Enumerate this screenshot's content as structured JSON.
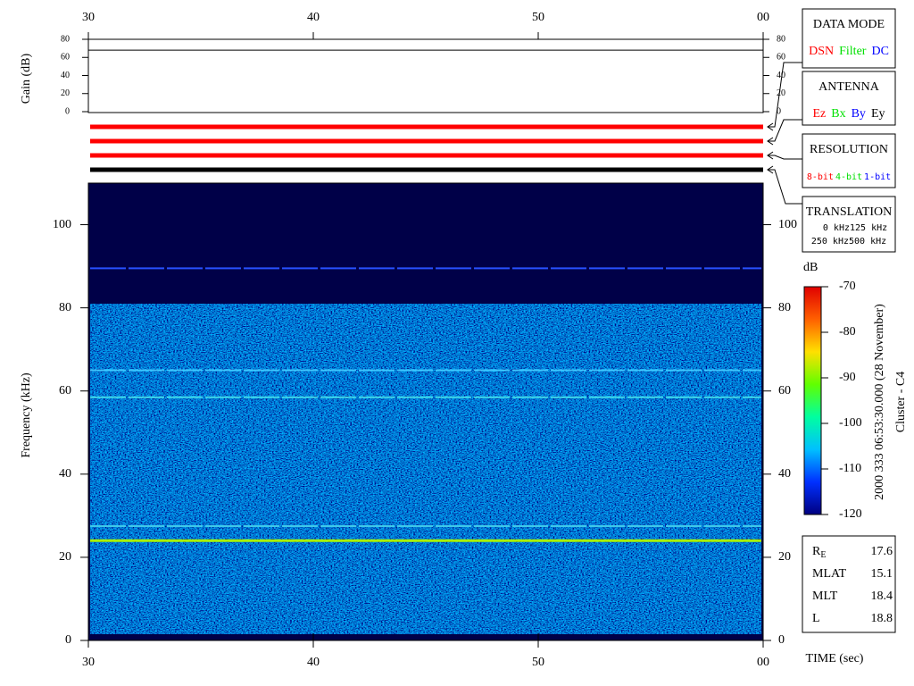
{
  "chart_data": [
    {
      "type": "line",
      "ylabel": "Gain (dB)",
      "xlim": [
        30,
        60
      ],
      "xticks": [
        30,
        40,
        50,
        {
          "value": 60,
          "label": "00"
        }
      ],
      "ylim": [
        0,
        80
      ],
      "yticks": [
        0,
        20,
        40,
        60,
        80
      ],
      "series": [
        {
          "color": "#000000",
          "x": [
            30,
            60
          ],
          "values": [
            68,
            68
          ]
        }
      ]
    },
    {
      "type": "spectrogram",
      "ylabel": "Frequency (kHz)",
      "xlabel": "TIME (sec)",
      "xlim": [
        30,
        60
      ],
      "xticks": [
        30,
        40,
        50,
        {
          "value": 60,
          "label": "00"
        }
      ],
      "ylim": [
        0,
        110
      ],
      "yticks": [
        0,
        20,
        40,
        60,
        80,
        100
      ],
      "lines": [
        {
          "value": 89.5,
          "color": "#2850ff"
        },
        {
          "value": 65,
          "color": "#40c8ff"
        },
        {
          "value": 58.5,
          "color": "#40d8e8"
        },
        {
          "value": 27.5,
          "color": "#40c8e8"
        },
        {
          "value": 24,
          "color": "#a8f000"
        }
      ],
      "colorbar": {
        "label": "dB",
        "lim": [
          -120,
          -70
        ],
        "ticks": [
          -70,
          -80,
          -90,
          -100,
          -110,
          -120
        ],
        "colors": [
          "#000080",
          "#0030ff",
          "#00c0ff",
          "#00ffa0",
          "#60ff00",
          "#ffe000",
          "#ff6000",
          "#e00000"
        ]
      }
    }
  ],
  "indicator_bars": [
    {
      "color": "#ff0000"
    },
    {
      "color": "#ff0000"
    },
    {
      "color": "#ff0000"
    },
    {
      "color": "#000000"
    }
  ],
  "legends": [
    {
      "title": "DATA MODE",
      "items": [
        {
          "text": "DSN",
          "color": "#ff0000"
        },
        {
          "text": "Filter",
          "color": "#00e000"
        },
        {
          "text": "DC",
          "color": "#0000ff"
        }
      ]
    },
    {
      "title": "ANTENNA",
      "items": [
        {
          "text": "Ez",
          "color": "#ff0000"
        },
        {
          "text": "Bx",
          "color": "#00e000"
        },
        {
          "text": "By",
          "color": "#0000ff"
        },
        {
          "text": "Ey",
          "color": "#000000"
        }
      ]
    },
    {
      "title": "RESOLUTION",
      "items": [
        {
          "text": "8-bit",
          "color": "#ff0000"
        },
        {
          "text": "4-bit",
          "color": "#00e000"
        },
        {
          "text": "1-bit",
          "color": "#0000ff"
        }
      ]
    },
    {
      "title": "TRANSLATION",
      "items": [
        {
          "text": "0 kHz",
          "color": "#ff0000"
        },
        {
          "text": "125 kHz",
          "color": "#00e000"
        },
        {
          "text": "250 kHz",
          "color": "#0000ff"
        },
        {
          "text": "500 kHz",
          "color": "#000000"
        }
      ]
    }
  ],
  "timestamp": "2000 333 06:53:30.000 (28 November)",
  "spacecraft": "Cluster - C4",
  "ephemeris": [
    {
      "label": "R",
      "sub": "E",
      "value": 17.6
    },
    {
      "label": "MLAT",
      "value": 15.1
    },
    {
      "label": "MLT",
      "value": 18.4
    },
    {
      "label": "L",
      "value": 18.8
    }
  ]
}
